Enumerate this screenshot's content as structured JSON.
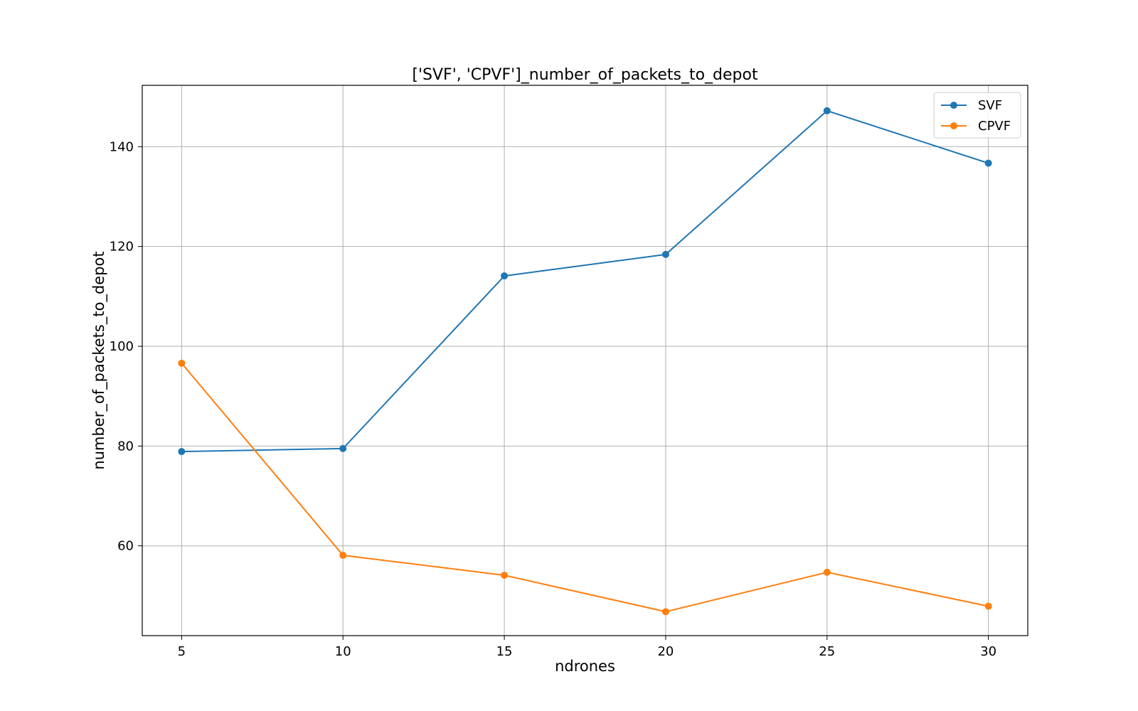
{
  "chart_data": {
    "type": "line",
    "title": "['SVF', 'CPVF']_number_of_packets_to_depot",
    "xlabel": "ndrones",
    "ylabel": "number_of_packets_to_depot",
    "x": [
      5,
      10,
      15,
      20,
      25,
      30
    ],
    "xticks": [
      5,
      10,
      15,
      20,
      25,
      30
    ],
    "yticks": [
      60,
      80,
      100,
      120,
      140
    ],
    "xlim": [
      3.78,
      31.22
    ],
    "ylim": [
      42.0,
      152.3
    ],
    "grid": true,
    "legend_position": "top-right",
    "series": [
      {
        "name": "SVF",
        "color": "#1f77b4",
        "values": [
          78.9,
          79.5,
          114.1,
          118.4,
          147.2,
          136.7
        ]
      },
      {
        "name": "CPVF",
        "color": "#ff7f0e",
        "values": [
          96.6,
          58.1,
          54.1,
          46.8,
          54.7,
          47.9
        ]
      }
    ]
  }
}
